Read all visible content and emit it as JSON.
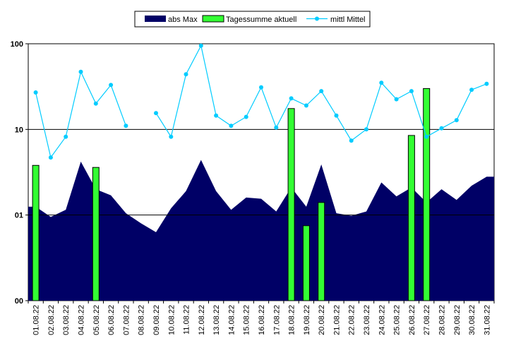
{
  "chart_data": {
    "type": "area",
    "y_scale": "log",
    "ylim": [
      0.1,
      100
    ],
    "y_tick_labels": [
      "00",
      "01",
      "10",
      "100"
    ],
    "y_tick_values": [
      0.1,
      1,
      10,
      100
    ],
    "grid": true,
    "legend": "top-center",
    "categories": [
      "01.08.22",
      "02.08.22",
      "03.08.22",
      "04.08.22",
      "05.08.22",
      "06.08.22",
      "07.08.22",
      "08.08.22",
      "09.08.22",
      "10.08.22",
      "11.08.22",
      "12.08.22",
      "13.08.22",
      "14.08.22",
      "15.08.22",
      "16.08.22",
      "17.08.22",
      "18.08.22",
      "19.08.22",
      "20.08.22",
      "21.08.22",
      "22.08.22",
      "23.08.22",
      "24.08.22",
      "25.08.22",
      "26.08.22",
      "27.08.22",
      "28.08.22",
      "29.08.22",
      "30.08.22",
      "31.08.22"
    ],
    "series": [
      {
        "name": "abs Max",
        "type": "area",
        "color": "#000066",
        "values": [
          1.25,
          0.95,
          1.15,
          4.2,
          2.0,
          1.7,
          1.05,
          0.8,
          0.63,
          1.2,
          1.9,
          4.4,
          1.9,
          1.15,
          1.6,
          1.55,
          1.1,
          2.1,
          1.25,
          3.9,
          1.05,
          0.98,
          1.1,
          2.4,
          1.65,
          2.1,
          1.4,
          2.0,
          1.5,
          2.2,
          2.8
        ]
      },
      {
        "name": "Tagessumme aktuell",
        "type": "bar",
        "color": "#33ff33",
        "values": [
          3.8,
          null,
          null,
          null,
          3.6,
          null,
          null,
          null,
          null,
          null,
          null,
          null,
          null,
          null,
          null,
          null,
          null,
          17.5,
          0.75,
          1.4,
          null,
          null,
          null,
          null,
          null,
          8.5,
          30,
          null,
          null,
          null,
          null
        ]
      },
      {
        "name": "mittl Mittel",
        "type": "line",
        "color": "#00ccff",
        "values": [
          27,
          4.7,
          8.2,
          47,
          20,
          33,
          11,
          null,
          15.5,
          8.2,
          44,
          95,
          14.5,
          11,
          14,
          31,
          10.5,
          23,
          19,
          28,
          14.5,
          7.4,
          10,
          35,
          22.5,
          28,
          8.2,
          10.3,
          12.8,
          29,
          34
        ]
      }
    ]
  }
}
